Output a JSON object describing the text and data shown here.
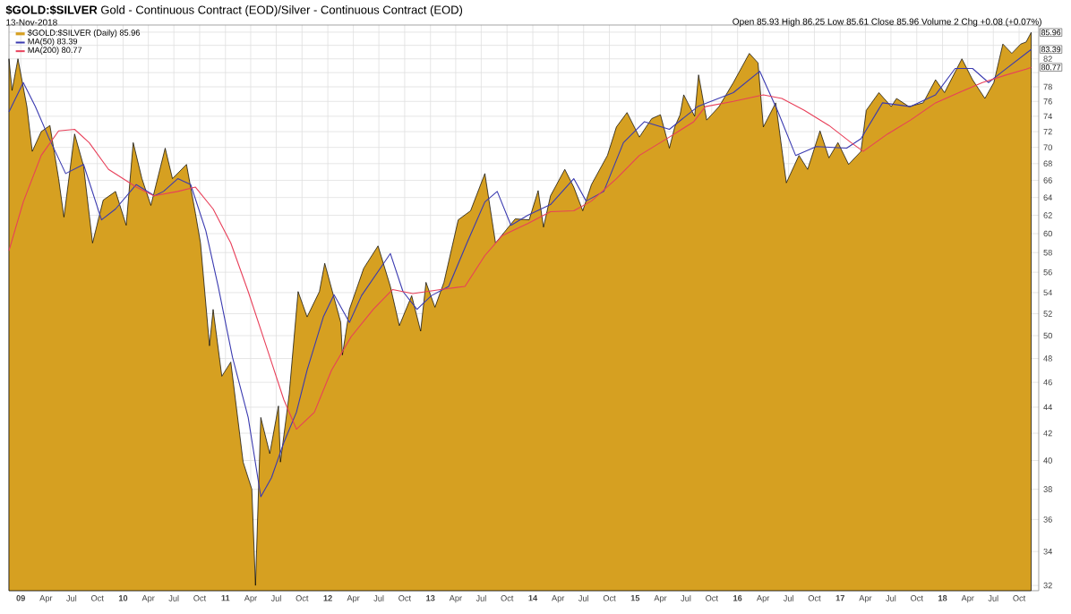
{
  "chart_data": {
    "type": "area",
    "title": "**$GOLD:$SILVER** Gold - Continuous Contract (EOD)/Silver - Continuous Contract (EOD)",
    "subtitle": "13-Nov-2018",
    "annotations": [
      "Open 85.93 High 86.25 Low 85.61 Close 85.96 Volume 2 Chg +0.08 (+0.07%)",
      {
        "text": "85.96",
        "x": "2018-11-13",
        "y": 85.96
      },
      {
        "text": "83.39",
        "x": "2018-11-13",
        "y": 83.39
      },
      {
        "text": "80.77",
        "x": "2018-11-13",
        "y": 80.77
      }
    ],
    "log": true,
    "grid": true,
    "legend": "top left",
    "xlim": [
      "2008-11-20",
      "2018-12-10"
    ],
    "xticks": [
      {
        "value": "2009-01-01",
        "label": "**09**"
      },
      {
        "value": "2009-04-01",
        "label": "Apr"
      },
      {
        "value": "2009-07-01",
        "label": "Jul"
      },
      {
        "value": "2009-10-01",
        "label": "Oct"
      },
      {
        "value": "2010-01-01",
        "label": "**10**"
      },
      {
        "value": "2010-04-01",
        "label": "Apr"
      },
      {
        "value": "2010-07-01",
        "label": "Jul"
      },
      {
        "value": "2010-10-01",
        "label": "Oct"
      },
      {
        "value": "2011-01-01",
        "label": "**11**"
      },
      {
        "value": "2011-04-01",
        "label": "Apr"
      },
      {
        "value": "2011-07-01",
        "label": "Jul"
      },
      {
        "value": "2011-10-01",
        "label": "Oct"
      },
      {
        "value": "2012-01-01",
        "label": "**12**"
      },
      {
        "value": "2012-04-01",
        "label": "Apr"
      },
      {
        "value": "2012-07-01",
        "label": "Jul"
      },
      {
        "value": "2012-10-01",
        "label": "Oct"
      },
      {
        "value": "2013-01-01",
        "label": "**13**"
      },
      {
        "value": "2013-04-01",
        "label": "Apr"
      },
      {
        "value": "2013-07-01",
        "label": "Jul"
      },
      {
        "value": "2013-10-01",
        "label": "Oct"
      },
      {
        "value": "2014-01-01",
        "label": "**14**"
      },
      {
        "value": "2014-04-01",
        "label": "Apr"
      },
      {
        "value": "2014-07-01",
        "label": "Jul"
      },
      {
        "value": "2014-10-01",
        "label": "Oct"
      },
      {
        "value": "2015-01-01",
        "label": "**15**"
      },
      {
        "value": "2015-04-01",
        "label": "Apr"
      },
      {
        "value": "2015-07-01",
        "label": "Jul"
      },
      {
        "value": "2015-10-01",
        "label": "Oct"
      },
      {
        "value": "2016-01-01",
        "label": "**16**"
      },
      {
        "value": "2016-04-01",
        "label": "Apr"
      },
      {
        "value": "2016-07-01",
        "label": "Jul"
      },
      {
        "value": "2016-10-01",
        "label": "Oct"
      },
      {
        "value": "2017-01-01",
        "label": "**17**"
      },
      {
        "value": "2017-04-01",
        "label": "Apr"
      },
      {
        "value": "2017-07-01",
        "label": "Jul"
      },
      {
        "value": "2017-10-01",
        "label": "Oct"
      },
      {
        "value": "2018-01-01",
        "label": "**18**"
      },
      {
        "value": "2018-04-01",
        "label": "Apr"
      },
      {
        "value": "2018-07-01",
        "label": "Jul"
      },
      {
        "value": "2018-10-01",
        "label": "Oct"
      }
    ],
    "ylim": [
      31.7,
      87.1
    ],
    "yticks": [
      32,
      34,
      36,
      38,
      40,
      42,
      44,
      46,
      48,
      50,
      52,
      54,
      56,
      58,
      60,
      62,
      64,
      66,
      68,
      70,
      72,
      74,
      76,
      78,
      {
        "value": 80,
        "label": null
      },
      82,
      {
        "value": 84,
        "label": null
      },
      {
        "value": 86,
        "label": null
      }
    ],
    "series": [
      {
        "name": "$GOLD:$SILVER (Daily) 85.96",
        "color": "#d6a021",
        "x": [
          "2008-11-20",
          "2008-12-01",
          "2008-12-22",
          "2009-01-23",
          "2009-02-11",
          "2009-03-15",
          "2009-04-15",
          "2009-05-16",
          "2009-06-04",
          "2009-07-12",
          "2009-08-13",
          "2009-09-14",
          "2009-10-22",
          "2009-12-05",
          "2010-01-12",
          "2010-02-06",
          "2010-03-09",
          "2010-04-10",
          "2010-05-31",
          "2010-06-26",
          "2010-08-15",
          "2010-09-16",
          "2010-10-04",
          "2010-11-05",
          "2010-11-18",
          "2010-12-19",
          "2011-01-20",
          "2011-03-05",
          "2011-04-05",
          "2011-04-18",
          "2011-05-07",
          "2011-06-08",
          "2011-07-09",
          "2011-07-16",
          "2011-08-16",
          "2011-09-17",
          "2011-10-19",
          "2011-12-02",
          "2011-12-21",
          "2012-02-16",
          "2012-02-22",
          "2012-03-18",
          "2012-05-08",
          "2012-06-28",
          "2012-08-11",
          "2012-09-12",
          "2012-10-26",
          "2012-11-27",
          "2012-12-16",
          "2013-01-17",
          "2013-02-18",
          "2013-04-10",
          "2013-05-24",
          "2013-07-14",
          "2013-08-21",
          "2013-09-28",
          "2013-10-30",
          "2013-12-19",
          "2014-01-20",
          "2014-02-08",
          "2014-03-05",
          "2014-04-25",
          "2014-05-27",
          "2014-06-28",
          "2014-07-29",
          "2014-09-24",
          "2014-10-26",
          "2014-12-03",
          "2015-01-16",
          "2015-03-01",
          "2015-04-01",
          "2015-05-03",
          "2015-05-22",
          "2015-06-10",
          "2015-06-23",
          "2015-08-01",
          "2015-08-15",
          "2015-09-13",
          "2015-10-27",
          "2015-12-17",
          "2016-02-12",
          "2016-03-14",
          "2016-04-02",
          "2016-05-16",
          "2016-06-23",
          "2016-08-07",
          "2016-09-07",
          "2016-10-21",
          "2016-11-22",
          "2016-12-24",
          "2017-01-31",
          "2017-03-16",
          "2017-04-04",
          "2017-05-19",
          "2017-07-02",
          "2017-07-21",
          "2017-09-03",
          "2017-10-24",
          "2017-12-07",
          "2018-01-08",
          "2018-03-11",
          "2018-04-18",
          "2018-06-01",
          "2018-07-03",
          "2018-08-04",
          "2018-09-05",
          "2018-10-07",
          "2018-10-26",
          "2018-11-13"
        ],
        "values": [
          82,
          77.5,
          82,
          75.3,
          69.5,
          72,
          72.8,
          66.2,
          61.8,
          71.7,
          67.7,
          59,
          63.7,
          64.7,
          60.9,
          70.6,
          66.2,
          63.1,
          69.9,
          66.2,
          67.9,
          62.2,
          59,
          49.1,
          52.4,
          46.5,
          47.7,
          39.9,
          38,
          32,
          43.2,
          40.5,
          44.1,
          39.9,
          45,
          54.1,
          51.7,
          54.1,
          56.9,
          51.2,
          48.3,
          52.4,
          56.4,
          58.7,
          54.6,
          50.9,
          53.7,
          50.4,
          55,
          52.6,
          55,
          61.5,
          62.5,
          66.8,
          59,
          60.4,
          61.6,
          61.5,
          64.8,
          60.7,
          64.2,
          67.3,
          65.2,
          62.5,
          65.5,
          69,
          72.6,
          74.5,
          71.3,
          73.7,
          74.2,
          69.9,
          72.6,
          74.2,
          76.9,
          74,
          79.7,
          73.5,
          75.3,
          78.6,
          82.8,
          81.4,
          72.6,
          75.8,
          65.7,
          69,
          67.3,
          72.1,
          68.7,
          70.6,
          67.9,
          69.5,
          74.8,
          77.2,
          75.3,
          76.4,
          75.3,
          75.8,
          79,
          77.2,
          82,
          79,
          76.4,
          78.6,
          84.2,
          82.8,
          84.2,
          84.5,
          85.96
        ]
      },
      {
        "name": "MA(50) 83.39",
        "type": "line",
        "color": "#3a3ab0",
        "x": [
          "2008-11-20",
          "2009-01-10",
          "2009-02-22",
          "2009-04-10",
          "2009-06-10",
          "2009-08-13",
          "2009-10-16",
          "2009-12-05",
          "2010-02-17",
          "2010-04-23",
          "2010-05-25",
          "2010-07-15",
          "2010-08-30",
          "2010-10-23",
          "2010-12-06",
          "2011-01-26",
          "2011-03-23",
          "2011-05-07",
          "2011-06-14",
          "2011-07-28",
          "2011-09-11",
          "2011-10-19",
          "2011-12-16",
          "2012-01-23",
          "2012-03-18",
          "2012-04-30",
          "2012-07-18",
          "2012-08-11",
          "2012-09-25",
          "2012-11-14",
          "2013-01-04",
          "2013-03-07",
          "2013-05-11",
          "2013-07-14",
          "2013-08-27",
          "2013-10-15",
          "2013-12-14",
          "2014-03-05",
          "2014-05-27",
          "2014-07-10",
          "2014-09-11",
          "2014-11-20",
          "2015-02-03",
          "2015-05-03",
          "2015-08-12",
          "2015-12-17",
          "2016-03-20",
          "2016-05-22",
          "2016-07-26",
          "2016-10-08",
          "2017-01-24",
          "2017-03-16",
          "2017-06-01",
          "2017-09-09",
          "2017-12-07",
          "2018-02-15",
          "2018-04-18",
          "2018-06-14",
          "2018-08-04",
          "2018-11-13"
        ],
        "values": [
          74.6,
          78.6,
          75.3,
          71.3,
          66.8,
          67.9,
          61.5,
          62.7,
          65.5,
          64.2,
          64.7,
          66.2,
          65.5,
          60.3,
          54.6,
          48.1,
          43.2,
          37.5,
          38.8,
          41.3,
          43.6,
          47,
          51.7,
          53.8,
          51.2,
          53.7,
          56.9,
          57.9,
          54.1,
          52.4,
          53.7,
          54.6,
          59,
          63.5,
          64.7,
          60.9,
          62,
          63.2,
          66.2,
          63.6,
          64.7,
          70.6,
          73.3,
          72.3,
          75.3,
          77.2,
          80.2,
          74.8,
          69,
          70.1,
          69.9,
          71.1,
          75.8,
          75.3,
          76.9,
          80.6,
          80.6,
          78.6,
          80.2,
          83.39
        ]
      },
      {
        "name": "MA(200) 80.77",
        "type": "line",
        "color": "#e8405a",
        "x": [
          "2008-11-20",
          "2009-01-10",
          "2009-03-15",
          "2009-05-16",
          "2009-07-12",
          "2009-09-02",
          "2009-11-10",
          "2010-02-17",
          "2010-04-21",
          "2010-07-15",
          "2010-09-16",
          "2010-11-18",
          "2011-01-20",
          "2011-03-23",
          "2011-05-26",
          "2011-07-28",
          "2011-09-11",
          "2011-11-14",
          "2012-01-14",
          "2012-03-24",
          "2012-06-11",
          "2012-08-19",
          "2012-10-30",
          "2013-02-06",
          "2013-05-04",
          "2013-07-14",
          "2013-09-14",
          "2013-12-14",
          "2014-03-05",
          "2014-05-27",
          "2014-07-29",
          "2014-10-26",
          "2015-01-16",
          "2015-05-03",
          "2015-07-29",
          "2015-09-08",
          "2015-12-17",
          "2016-04-02",
          "2016-06-07",
          "2016-08-26",
          "2016-11-22",
          "2017-02-09",
          "2017-03-24",
          "2017-06-19",
          "2017-09-09",
          "2017-12-07",
          "2018-02-28",
          "2018-05-23",
          "2018-08-17",
          "2018-10-26",
          "2018-11-13"
        ],
        "values": [
          58.2,
          63.5,
          69,
          72.1,
          72.3,
          70.6,
          67.3,
          65.2,
          64.2,
          64.7,
          65.2,
          62.7,
          59,
          54.1,
          49.1,
          44.6,
          42.3,
          43.6,
          47,
          49.9,
          52.4,
          54.3,
          53.9,
          54.3,
          54.6,
          57.7,
          59.8,
          61.1,
          62.4,
          62.5,
          63.6,
          66.2,
          69,
          71.3,
          73.3,
          75.3,
          76,
          76.9,
          76.4,
          74.8,
          72.8,
          70.6,
          69.5,
          71.7,
          73.5,
          75.8,
          77.2,
          78.6,
          79.7,
          80.5,
          80.77
        ]
      }
    ]
  }
}
